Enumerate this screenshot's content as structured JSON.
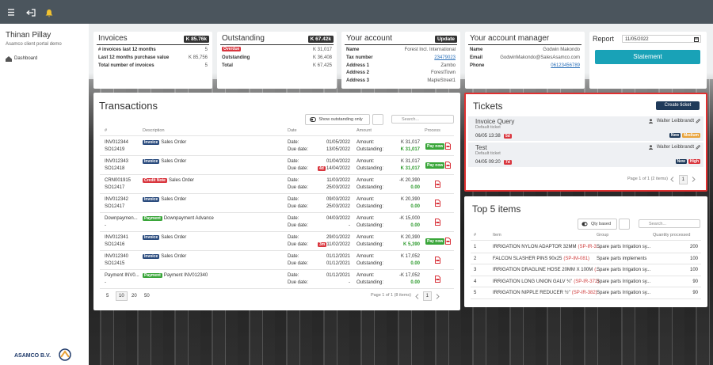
{
  "sidebar": {
    "user": "Thinan Pillay",
    "subtitle": "Asamco client portal demo",
    "nav": [
      "Dashboard"
    ],
    "logo": "ASAMCO B.V."
  },
  "invoices": {
    "title": "Invoices",
    "badge": "K 85.76k",
    "rows": [
      {
        "label": "# invoices last 12 months",
        "value": "5"
      },
      {
        "label": "Last 12 months purchase value",
        "value": "K 85,756"
      },
      {
        "label": "Total number of invoices",
        "value": "5"
      }
    ]
  },
  "outstanding": {
    "title": "Outstanding",
    "badge": "K 67.42k",
    "rows": [
      {
        "label": "Overdue",
        "value": "K 31,017",
        "label_badge": true
      },
      {
        "label": "Outstanding",
        "value": "K 36,408"
      },
      {
        "label": "Total",
        "value": "K 67,425"
      }
    ]
  },
  "account": {
    "title": "Your account",
    "button": "Update",
    "rows": [
      {
        "label": "Name",
        "value": "Forest Incl. International"
      },
      {
        "label": "Tax number",
        "value": "23479023",
        "link": true
      },
      {
        "label": "Address 1",
        "value": "Zambo"
      },
      {
        "label": "Address 2",
        "value": "ForestTown"
      },
      {
        "label": "Address 3",
        "value": "MapleStreet1"
      }
    ]
  },
  "manager": {
    "title": "Your account manager",
    "rows": [
      {
        "label": "Name",
        "value": "Godwin Makondo"
      },
      {
        "label": "Email",
        "value": "GodwinMakondo@SalesAsamco.com"
      },
      {
        "label": "Phone",
        "value": "06123456789",
        "link": true
      }
    ]
  },
  "report": {
    "title": "Report",
    "date": "11/05/2022",
    "button": "Statement"
  },
  "transactions": {
    "title": "Transactions",
    "toggle": "Show outstanding only",
    "search_placeholder": "Search...",
    "columns": [
      "#",
      "Description",
      "Date",
      "Amount",
      "Process"
    ],
    "field_labels": {
      "date": "Date:",
      "due_date": "Due date:",
      "amount": "Amount:",
      "outstanding": "Outstanding:"
    },
    "pay_button": "Pay now",
    "doc_type_colors": {
      "Invoice": "#2b4c7e",
      "Credit Note": "#d9363e",
      "Payment": "#3aa63a"
    },
    "rows": [
      {
        "number": "INV012344",
        "reference": "SO12419",
        "doc_type": "Invoice",
        "description": "Sales Order",
        "date": "01/05/2022",
        "due_date": "13/05/2022",
        "amount": "K 31,017",
        "outstanding": "K 31,017",
        "payable": true
      },
      {
        "number": "INV012343",
        "reference": "SO12418",
        "doc_type": "Invoice",
        "description": "Sales Order",
        "date": "01/04/2022",
        "due_date": "14/04/2022",
        "due_badge": "4d",
        "amount": "K 31,017",
        "outstanding": "K 31,017",
        "payable": true
      },
      {
        "number": "CRN001915",
        "reference": "SO12417",
        "doc_type": "Credit Note",
        "description": "Sales Order",
        "date": "11/03/2022",
        "due_date": "25/03/2022",
        "amount": "-K 20,390",
        "outstanding": "0.00",
        "payable": false
      },
      {
        "number": "INV012342",
        "reference": "SO12417",
        "doc_type": "Invoice",
        "description": "Sales Order",
        "date": "09/03/2022",
        "due_date": "25/03/2022",
        "amount": "K 20,390",
        "outstanding": "0.00",
        "payable": false
      },
      {
        "number": "Downpaymen...",
        "reference": "-",
        "doc_type": "Payment",
        "description": "Downpayment Advance",
        "date": "04/03/2022",
        "due_date": "-",
        "amount": "-K 15,000",
        "outstanding": "0.00",
        "payable": false
      },
      {
        "number": "INV012341",
        "reference": "SO12416",
        "doc_type": "Invoice",
        "description": "Sales Order",
        "date": "29/01/2022",
        "due_date": "11/02/2022",
        "due_badge": "3m",
        "amount": "K 20,390",
        "outstanding": "K 5,390",
        "payable": true
      },
      {
        "number": "INV012340",
        "reference": "SO12415",
        "doc_type": "Invoice",
        "description": "Sales Order",
        "date": "01/12/2021",
        "due_date": "01/12/2021",
        "amount": "K 17,052",
        "outstanding": "0.00",
        "payable": false
      },
      {
        "number": "Payment INV0...",
        "reference": "-",
        "doc_type": "Payment",
        "description": "Payment INV012340",
        "date": "01/12/2021",
        "due_date": "-",
        "amount": "-K 17,052",
        "outstanding": "0.00",
        "payable": false
      }
    ],
    "page_sizes": [
      5,
      10,
      20,
      50
    ],
    "pager": {
      "summary": "Page 1 of 1 (8 items)",
      "current": 1
    }
  },
  "tickets": {
    "title": "Tickets",
    "create_button": "Create ticket",
    "priority_colors": {
      "Medium": "#e8a33b",
      "High": "#d9363e"
    },
    "items": [
      {
        "title": "Invoice Query",
        "category": "Default ticket",
        "assignee": "Walter Leibbrandt",
        "time": "06/05 13:38",
        "age": "5d",
        "status": "New",
        "priority": "Medium"
      },
      {
        "title": "Test",
        "category": "Default ticket",
        "assignee": "Walter Leibbrandt",
        "time": "04/05 09:20",
        "age": "7d",
        "status": "New",
        "priority": "High"
      }
    ],
    "pager": {
      "summary": "Page 1 of 1 (2 items)",
      "current": 1
    }
  },
  "top_items": {
    "title": "Top 5 items",
    "toggle": "Qty based",
    "search_placeholder": "Search...",
    "columns": [
      "#",
      "Item",
      "Group",
      "Quantity processed"
    ],
    "rows": [
      {
        "rank": 1,
        "item": "IRRIGATION NYLON ADAPTOR 32MM",
        "code": "(SP-IR-3...",
        "group": "Spare parts Irrigation sy...",
        "quantity": 200
      },
      {
        "rank": 2,
        "item": "FALCON SLASHER PINS 90x25",
        "code": "(SP-IM-081)",
        "group": "Spare parts implements",
        "quantity": 100
      },
      {
        "rank": 3,
        "item": "IRRIGATION DRAGLINE HOSE 20MM X 100M",
        "code": "(...",
        "group": "Spare parts Irrigation sy...",
        "quantity": 100
      },
      {
        "rank": 4,
        "item": "IRRIGATION LONG UNION GALV ¾\"",
        "code": "(SP-IR-372)",
        "group": "Spare parts Irrigation sy...",
        "quantity": 90
      },
      {
        "rank": 5,
        "item": "IRRIGATION NIPPLE REDUCER ½\"",
        "code": "(SP-IR-382)",
        "group": "Spare parts Irrigation sy...",
        "quantity": 90
      }
    ]
  }
}
